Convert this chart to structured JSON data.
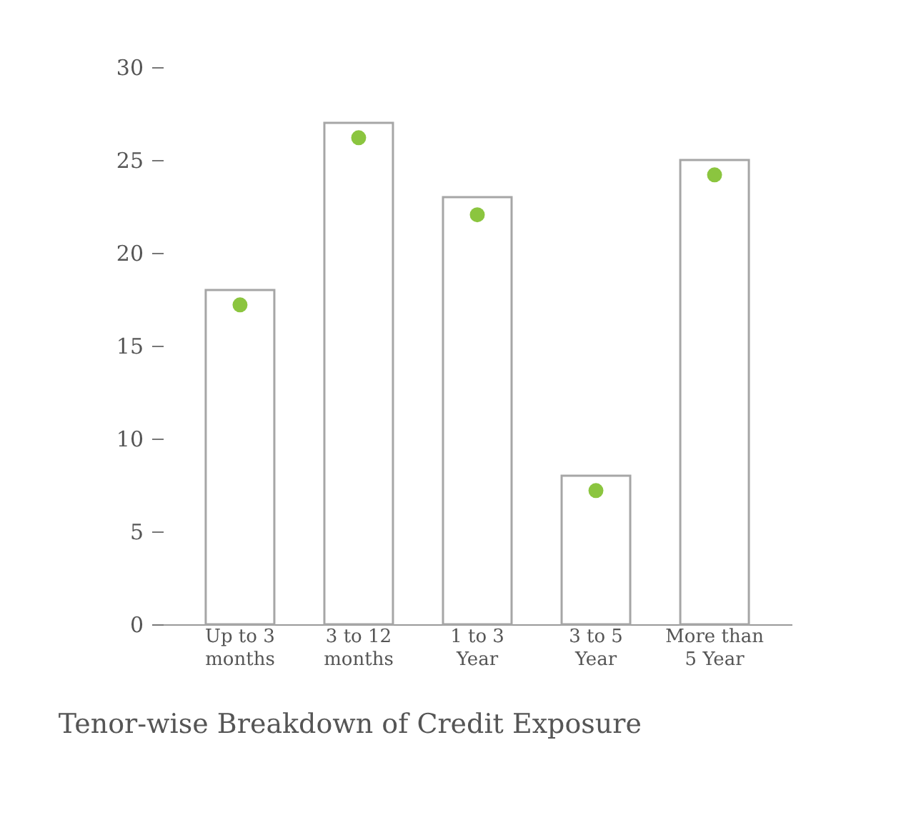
{
  "chart_data": {
    "type": "bar",
    "title": "Tenor-wise Breakdown of Credit Exposure",
    "categories": [
      "Up to 3 months",
      "3 to 12 months",
      "1 to 3 Year",
      "3 to 5 Year",
      "More than 5 Year"
    ],
    "series": [
      {
        "color": "#a6a6a6",
        "values": [
          18,
          27,
          23,
          8,
          25
        ]
      },
      {
        "type": "scatter",
        "color": "#8bc53f",
        "values": [
          17.2,
          26.2,
          22.05,
          7.2,
          24.2
        ]
      }
    ],
    "ylim": [
      0,
      30
    ],
    "yticks": [
      0,
      5,
      10,
      15,
      20,
      25,
      30
    ],
    "marker": "circle"
  }
}
